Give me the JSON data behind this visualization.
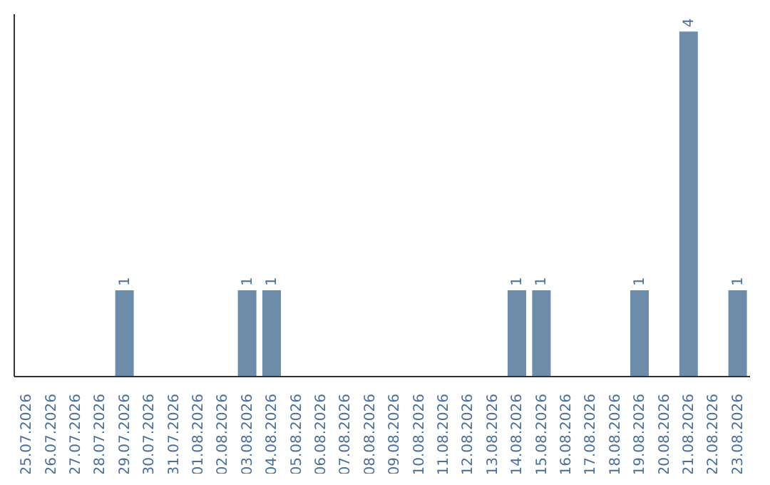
{
  "chart_data": {
    "type": "bar",
    "categories": [
      "25.07.2026",
      "26.07.2026",
      "27.07.2026",
      "28.07.2026",
      "29.07.2026",
      "30.07.2026",
      "31.07.2026",
      "01.08.2026",
      "02.08.2026",
      "03.08.2026",
      "04.08.2026",
      "05.08.2026",
      "06.08.2026",
      "07.08.2026",
      "08.08.2026",
      "09.08.2026",
      "10.08.2026",
      "11.08.2026",
      "12.08.2026",
      "13.08.2026",
      "14.08.2026",
      "15.08.2026",
      "16.08.2026",
      "17.08.2026",
      "18.08.2026",
      "19.08.2026",
      "20.08.2026",
      "21.08.2026",
      "22.08.2026",
      "23.08.2026"
    ],
    "values": [
      0,
      0,
      0,
      0,
      1,
      0,
      0,
      0,
      0,
      1,
      1,
      0,
      0,
      0,
      0,
      0,
      0,
      0,
      0,
      0,
      1,
      1,
      0,
      0,
      0,
      1,
      0,
      4,
      0,
      1
    ],
    "value_labels": [
      null,
      null,
      null,
      null,
      "1",
      null,
      null,
      null,
      null,
      "1",
      "1",
      null,
      null,
      null,
      null,
      null,
      null,
      null,
      null,
      null,
      "1",
      "1",
      null,
      null,
      null,
      "1",
      null,
      "4",
      null,
      "1"
    ],
    "color": "#6d8caa"
  }
}
